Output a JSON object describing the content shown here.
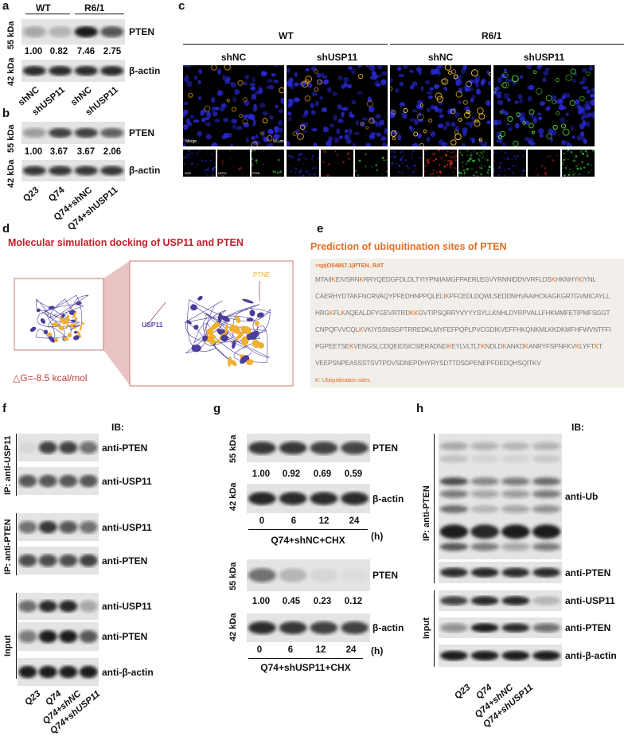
{
  "panel_letters": {
    "a": "a",
    "b": "b",
    "c": "c",
    "d": "d",
    "e": "e",
    "f": "f",
    "g": "g",
    "h": "h"
  },
  "panel_a": {
    "groups": [
      "WT",
      "R6/1"
    ],
    "marker_top": "55 kDa",
    "marker_bottom": "42 kDa",
    "row_labels": [
      "PTEN",
      "β-actin"
    ],
    "values": [
      "1.00",
      "0.82",
      "7.46",
      "2.75"
    ],
    "lanes": [
      "shNC",
      "shUSP11",
      "shNC",
      "shUSP11"
    ]
  },
  "panel_b": {
    "marker_top": "55 kDa",
    "marker_bottom": "42 kDa",
    "row_labels": [
      "PTEN",
      "β-actin"
    ],
    "values": [
      "1.00",
      "3.67",
      "3.67",
      "2.06"
    ],
    "lanes": [
      "Q23",
      "Q74",
      "Q74+shNC",
      "Q74+shUSP11"
    ]
  },
  "panel_c": {
    "groups": [
      "WT",
      "R6/1"
    ],
    "columns": [
      "shNC",
      "shUSP11",
      "shNC",
      "shUSP11"
    ],
    "merge_label": "Merge",
    "scale_bar": "50 μm",
    "channel_labels": [
      "DAPI",
      "USP11",
      "PTEN"
    ]
  },
  "panel_d": {
    "title": "Molecular simulation docking of USP11 and PTEN",
    "label_usp11": "USP11",
    "label_pten": "PTNE",
    "energy": "△G=-8.5 kcal/mol",
    "colors": {
      "title": "#c0202a",
      "usp11": "#4b3e9a",
      "pten": "#f0b030",
      "box": "#c87878"
    }
  },
  "panel_e": {
    "title": "Prediction of ubiquitination sites of PTEN",
    "header": ">sp|O54857.1|PTEN_RAT",
    "sequence_lines": [
      [
        [
          "MTAII",
          0
        ],
        [
          "K",
          1
        ],
        [
          "EIVSRN",
          0
        ],
        [
          "K",
          1
        ],
        [
          "RRYQEDGFDLDLTYIYPNIIAMGFPAERLEGVYRNNIDDVVRFLDS",
          0
        ],
        [
          "K",
          1
        ],
        [
          "HKNHY",
          0
        ],
        [
          "K",
          1
        ],
        [
          "IYNL",
          0
        ]
      ],
      [
        [
          "CAERHYDTAKFNCRVAQYPFEDHNPPQLELI",
          0
        ],
        [
          "K",
          1
        ],
        [
          "PFCEDLDQWLSEDDNHVAAIHCKAGKGRTGVMICAYLL",
          0
        ]
      ],
      [
        [
          "HRG",
          0
        ],
        [
          "K",
          1
        ],
        [
          "FL",
          0
        ],
        [
          "K",
          1
        ],
        [
          "AQEALDFYGEVRTRD",
          0
        ],
        [
          "KK",
          1
        ],
        [
          "GVTIPSQRRYVYYYSYLLKNHLDYRPVALLFHKMMFETIPMFSGGT",
          0
        ]
      ],
      [
        [
          "CNPQFVVCQL",
          0
        ],
        [
          "K",
          1
        ],
        [
          "VKIYSSNSGPTRREDKLMYFEFPQPLPVCGDIKVEFFHKQNKMLKKDKMFHFWVNTFFI",
          0
        ]
      ],
      [
        [
          "PGPEETSE",
          0
        ],
        [
          "K",
          1
        ],
        [
          "VENGSLCDQEIDSICSIERADND",
          0
        ],
        [
          "K",
          1
        ],
        [
          "EYLVLTLT",
          0
        ],
        [
          "K",
          1
        ],
        [
          "NDLD",
          0
        ],
        [
          "K",
          1
        ],
        [
          "ANKD",
          0
        ],
        [
          "K",
          1
        ],
        [
          "ANRYFSPNFKV",
          0
        ],
        [
          "K",
          1
        ],
        [
          "LYFT",
          0
        ],
        [
          "K",
          1
        ],
        [
          "T",
          0
        ]
      ],
      [
        [
          "VEEPSNPEASSSTSVTPDVSDNEPDHYRYSDTTDSDPENEPFDEDQHSQITKV",
          0
        ]
      ]
    ],
    "legend": "K: Ubiquitination sites",
    "colors": {
      "title": "#e0702a",
      "box": "#f2efea"
    }
  },
  "panel_f": {
    "ib_label": "IB:",
    "ip_groups": [
      "IP: anti-USP11",
      "IP: anti-PTEN",
      "Input"
    ],
    "row_labels": [
      "anti-PTEN",
      "anti-USP11",
      "anti-USP11",
      "anti-PTEN",
      "anti-USP11",
      "anti-PTEN",
      "anti-β-actin"
    ],
    "lanes": [
      "Q23",
      "Q74",
      "Q74+shNC",
      "Q74+shUSP11"
    ]
  },
  "panel_g": {
    "top": {
      "marker_top": "55 kDa",
      "marker_bottom": "42 kDa",
      "row_labels": [
        "PTEN",
        "β-actin"
      ],
      "values": [
        "1.00",
        "0.92",
        "0.69",
        "0.59"
      ],
      "times": [
        "0",
        "6",
        "12",
        "24"
      ],
      "unit": "(h)",
      "caption": "Q74+shNC+CHX"
    },
    "bottom": {
      "marker_top": "55 kDa",
      "marker_bottom": "42 kDa",
      "row_labels": [
        "PTEN",
        "β-actin"
      ],
      "values": [
        "1.00",
        "0.45",
        "0.23",
        "0.12"
      ],
      "times": [
        "0",
        "6",
        "12",
        "24"
      ],
      "unit": "(h)",
      "caption": "Q74+shUSP11+CHX"
    }
  },
  "panel_h": {
    "ib_label": "IB:",
    "ip_groups": [
      "IP: anti-PTEN",
      "Input"
    ],
    "row_labels": [
      "anti-Ub",
      "anti-PTEN",
      "anti-USP11",
      "anti-PTEN",
      "anti-β-actin"
    ],
    "lanes": [
      "Q23",
      "Q74",
      "Q74+shNC",
      "Q74+shUSP11"
    ]
  }
}
